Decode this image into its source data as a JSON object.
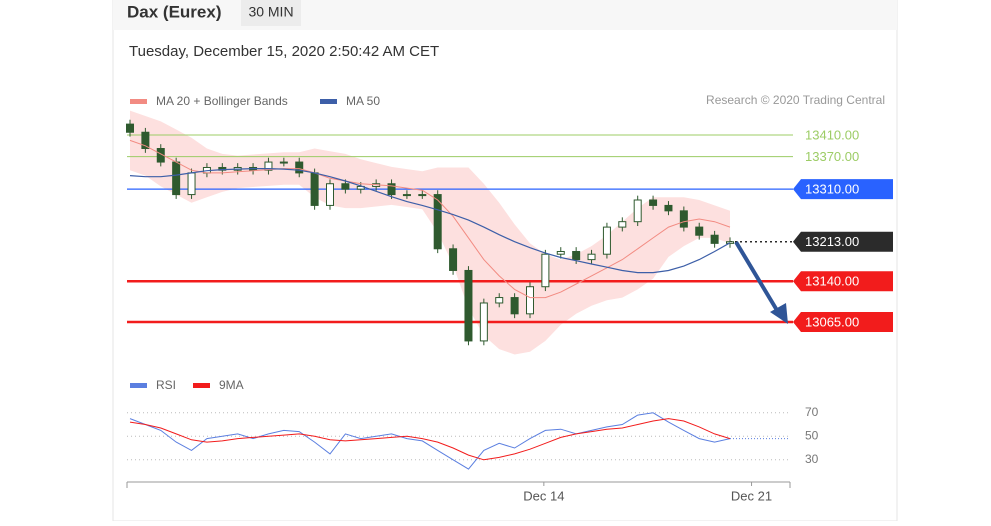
{
  "header": {
    "title": "Dax (Eurex)",
    "interval": "30 MIN",
    "timestamp": "Tuesday, December 15, 2020 2:50:42 AM CET",
    "source": "Research © 2020 Trading Central"
  },
  "chart_data": [
    {
      "type": "candlestick",
      "open": [
        13430,
        13415,
        13385,
        13360,
        13300,
        13340,
        13350,
        13345,
        13350,
        13345,
        13360,
        13360,
        13340,
        13280,
        13320,
        13310,
        13315,
        13320,
        13300,
        13300,
        13300,
        13200,
        13160,
        13030,
        13100,
        13110,
        13080,
        13130,
        13190,
        13195,
        13180,
        13190,
        13240,
        13250,
        13290,
        13280,
        13270,
        13240,
        13225,
        13210
      ],
      "high": [
        13438,
        13423,
        13393,
        13368,
        13348,
        13358,
        13358,
        13358,
        13358,
        13368,
        13368,
        13368,
        13348,
        13328,
        13328,
        13323,
        13328,
        13328,
        13308,
        13308,
        13308,
        13208,
        13168,
        13108,
        13118,
        13118,
        13138,
        13198,
        13203,
        13203,
        13198,
        13248,
        13258,
        13298,
        13298,
        13288,
        13278,
        13248,
        13233,
        13221
      ],
      "low": [
        13407,
        13377,
        13352,
        13292,
        13292,
        13332,
        13337,
        13337,
        13337,
        13337,
        13352,
        13332,
        13272,
        13272,
        13302,
        13302,
        13307,
        13292,
        13292,
        13292,
        13192,
        13152,
        13022,
        13022,
        13092,
        13072,
        13072,
        13122,
        13182,
        13172,
        13172,
        13182,
        13232,
        13242,
        13272,
        13262,
        13232,
        13217,
        13202,
        13202
      ],
      "close": [
        13415,
        13385,
        13360,
        13300,
        13340,
        13350,
        13345,
        13350,
        13345,
        13360,
        13360,
        13340,
        13280,
        13320,
        13310,
        13315,
        13320,
        13300,
        13300,
        13300,
        13200,
        13160,
        13030,
        13100,
        13110,
        13080,
        13130,
        13190,
        13195,
        13180,
        13190,
        13240,
        13250,
        13290,
        13280,
        13270,
        13240,
        13225,
        13210,
        13213
      ],
      "up_color": "#ffffff",
      "down_color": "#2f5a2f",
      "candle_stroke": "#2f5a2f",
      "series": [
        {
          "name": "MA 20 + Bollinger Bands",
          "color": "#f28b82",
          "band_color": "#fde0df",
          "values": [
            13400,
            13390,
            13375,
            13360,
            13345,
            13340,
            13340,
            13342,
            13344,
            13346,
            13348,
            13348,
            13340,
            13330,
            13325,
            13320,
            13318,
            13316,
            13312,
            13308,
            13290,
            13260,
            13220,
            13180,
            13150,
            13125,
            13110,
            13110,
            13120,
            13135,
            13150,
            13165,
            13180,
            13200,
            13220,
            13240,
            13250,
            13255,
            13250,
            13240
          ],
          "upper": [
            13455,
            13445,
            13435,
            13420,
            13405,
            13385,
            13375,
            13372,
            13374,
            13376,
            13378,
            13378,
            13385,
            13380,
            13375,
            13365,
            13358,
            13351,
            13347,
            13343,
            13350,
            13350,
            13350,
            13320,
            13285,
            13245,
            13210,
            13190,
            13180,
            13190,
            13205,
            13225,
            13250,
            13275,
            13295,
            13295,
            13295,
            13290,
            13280,
            13270
          ],
          "lower": [
            13345,
            13335,
            13315,
            13300,
            13285,
            13295,
            13305,
            13312,
            13314,
            13316,
            13318,
            13318,
            13295,
            13280,
            13275,
            13275,
            13278,
            13281,
            13277,
            13273,
            13230,
            13170,
            13090,
            13040,
            13015,
            13005,
            13010,
            13030,
            13060,
            13080,
            13095,
            13105,
            13110,
            13125,
            13145,
            13185,
            13205,
            13220,
            13220,
            13210
          ]
        },
        {
          "name": "MA 50",
          "color": "#3d5fa8",
          "values": [
            13335,
            13333,
            13333,
            13336,
            13340,
            13344,
            13346,
            13347,
            13348,
            13348,
            13347,
            13345,
            13340,
            13333,
            13325,
            13316,
            13306,
            13296,
            13287,
            13280,
            13272,
            13263,
            13253,
            13240,
            13226,
            13213,
            13202,
            13192,
            13184,
            13178,
            13172,
            13166,
            13160,
            13156,
            13156,
            13160,
            13168,
            13180,
            13195,
            13211
          ]
        }
      ],
      "levels": [
        {
          "value": 13410,
          "label": "13410.00",
          "color": "#9ccc65",
          "style": "plain"
        },
        {
          "value": 13370,
          "label": "13370.00",
          "color": "#9ccc65",
          "style": "plain"
        },
        {
          "value": 13310,
          "label": "13310.00",
          "color": "#2962ff",
          "style": "box"
        },
        {
          "value": 13213,
          "label": "13213.00",
          "color": "#2b2b2b",
          "style": "dotted"
        },
        {
          "value": 13140,
          "label": "13140.00",
          "color": "#f21c1c",
          "style": "box"
        },
        {
          "value": 13065,
          "label": "13065.00",
          "color": "#f21c1c",
          "style": "box"
        }
      ],
      "xlim": [
        0,
        42.9
      ],
      "ylim": [
        12990,
        13440
      ]
    },
    {
      "type": "line",
      "series": [
        {
          "name": "RSI",
          "color": "#5b7fe0",
          "values": [
            65,
            60,
            55,
            45,
            38,
            48,
            50,
            52,
            48,
            52,
            55,
            54,
            45,
            35,
            52,
            48,
            50,
            52,
            48,
            46,
            38,
            30,
            22,
            38,
            44,
            40,
            48,
            55,
            56,
            52,
            55,
            58,
            60,
            68,
            70,
            62,
            55,
            48,
            45,
            48
          ]
        },
        {
          "name": "9MA",
          "color": "#f21c1c",
          "values": [
            62,
            60,
            57,
            52,
            47,
            45,
            46,
            48,
            49,
            50,
            51,
            52,
            50,
            47,
            46,
            47,
            48,
            49,
            50,
            48,
            45,
            40,
            34,
            30,
            32,
            35,
            39,
            44,
            49,
            52,
            54,
            56,
            57,
            60,
            63,
            65,
            63,
            58,
            52,
            48
          ]
        }
      ],
      "ylim": [
        20,
        80
      ],
      "yticks": [
        30,
        50,
        70
      ],
      "xlim": [
        0,
        42.9
      ],
      "xticks": [
        {
          "value": 26.9,
          "label": "Dec 14"
        },
        {
          "value": 40.4,
          "label": "Dec 21"
        }
      ]
    }
  ]
}
